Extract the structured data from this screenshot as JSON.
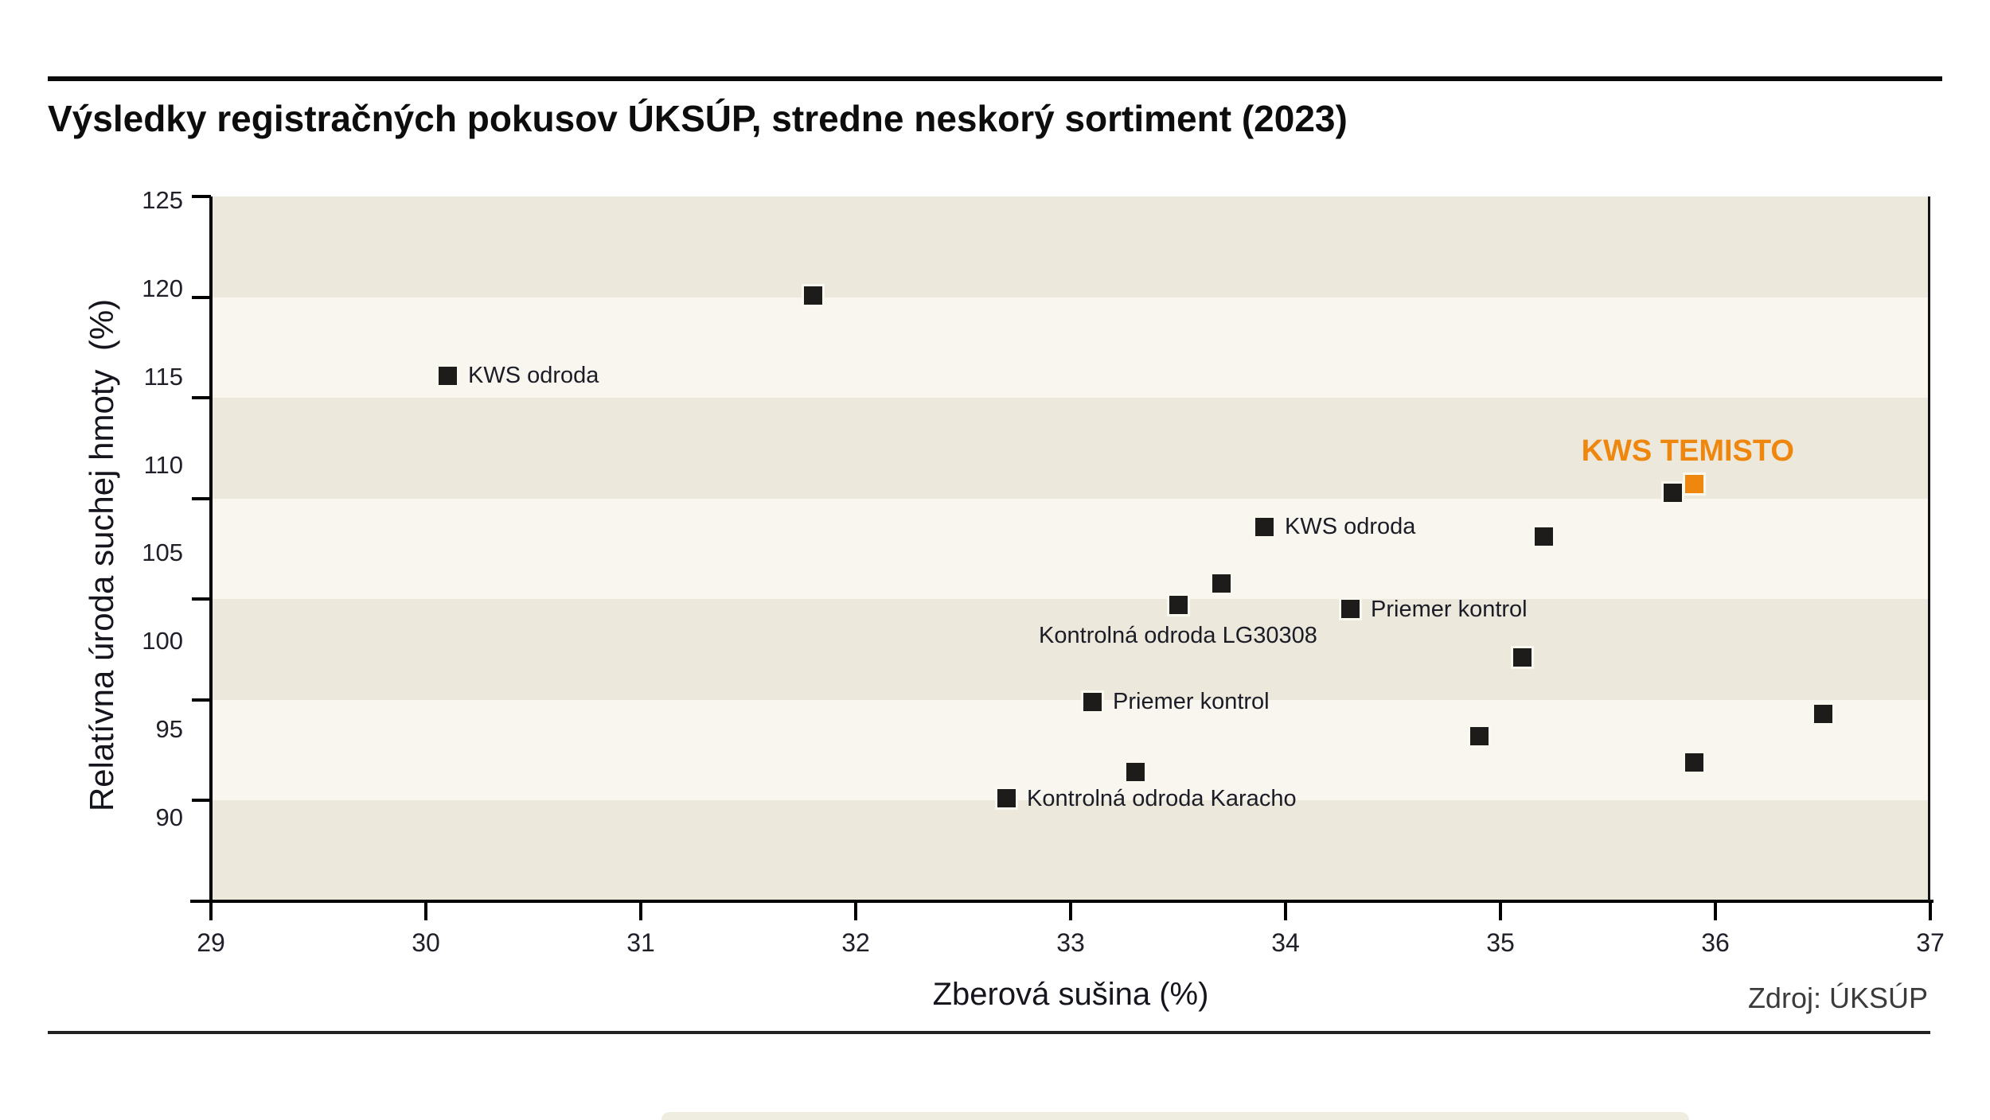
{
  "header": {
    "title": "Výsledky registračných pokusov ÚKSÚP, stredne neskorý sortiment (2023)"
  },
  "chart_data": {
    "type": "scatter",
    "title": "Výsledky registračných pokusov ÚKSÚP, stredne neskorý sortiment (2023)",
    "xlabel": "Zberová sušina (%)",
    "ylabel": "Relatívna úroda suchej hmoty  (%)",
    "xlim": [
      29,
      37
    ],
    "ylim": [
      90,
      125
    ],
    "x_ticks": [
      29,
      30,
      31,
      32,
      33,
      34,
      35,
      36,
      37
    ],
    "y_ticks": [
      125,
      120,
      115,
      110,
      105,
      100,
      95,
      90
    ],
    "grid": "alternating horizontal 5-unit bands, no gridlines",
    "legend_position": "none",
    "band_colors": {
      "dark": "#ECE9DC",
      "light": "#F8F6EE"
    },
    "colors": {
      "marker": "#1D1C1A",
      "highlight": "#EF860D",
      "axis": "#000000"
    },
    "points": [
      {
        "x": 30.1,
        "y": 116.1,
        "label": "KWS odroda",
        "label_pos": "right"
      },
      {
        "x": 31.8,
        "y": 120.1
      },
      {
        "x": 32.7,
        "y": 95.1,
        "label": "Kontrolná odroda Karacho",
        "label_pos": "right"
      },
      {
        "x": 33.1,
        "y": 99.9,
        "label": "Priemer kontrol",
        "label_pos": "right"
      },
      {
        "x": 33.3,
        "y": 96.4
      },
      {
        "x": 33.5,
        "y": 104.7,
        "label": "Kontrolná odroda LG30308",
        "label_pos": "below"
      },
      {
        "x": 33.7,
        "y": 105.8
      },
      {
        "x": 33.9,
        "y": 108.6,
        "label": "KWS odroda",
        "label_pos": "right"
      },
      {
        "x": 34.3,
        "y": 104.5,
        "label": "Priemer kontrol",
        "label_pos": "right"
      },
      {
        "x": 34.9,
        "y": 98.2
      },
      {
        "x": 35.1,
        "y": 102.1
      },
      {
        "x": 35.2,
        "y": 108.1
      },
      {
        "x": 35.8,
        "y": 110.3
      },
      {
        "x": 35.9,
        "y": 110.7,
        "label": "KWS TEMISTO",
        "label_pos": "above",
        "highlight": true
      },
      {
        "x": 35.9,
        "y": 96.9
      },
      {
        "x": 36.5,
        "y": 99.3
      }
    ],
    "source": "Zdroj: ÚKSÚP"
  }
}
